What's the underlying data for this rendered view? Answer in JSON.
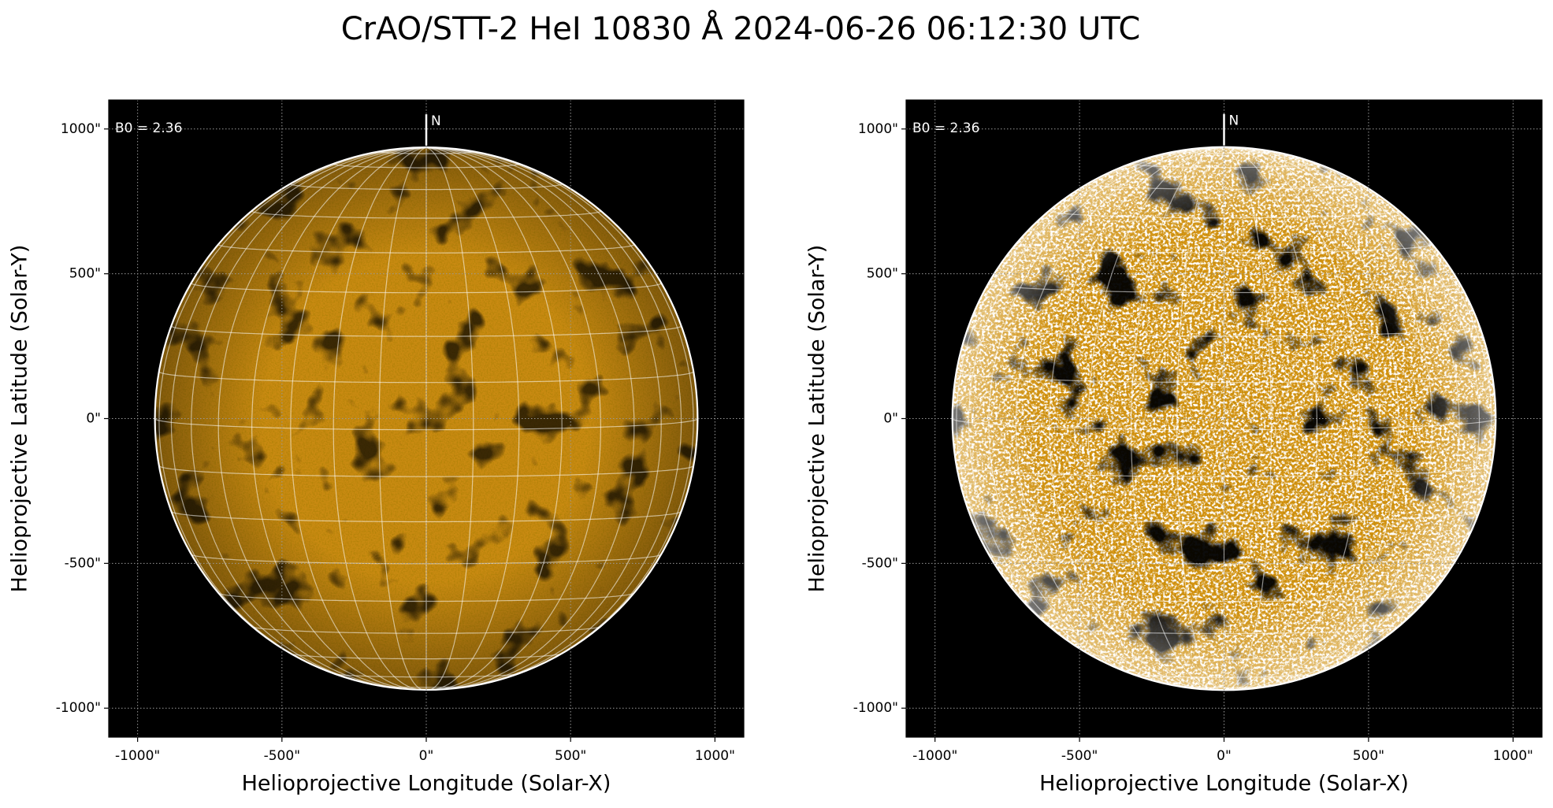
{
  "title": "CrAO/STT-2 HeI 10830 Å 2024-06-26 06:12:30 UTC",
  "chart_data": [
    {
      "type": "solar-image",
      "xlabel": "Helioprojective Longitude (Solar-X)",
      "ylabel": "Helioprojective Latitude (Solar-Y)",
      "annotation": "B0 = 2.36",
      "north_label": "N",
      "xlim": [
        -1100,
        1100
      ],
      "ylim": [
        -1100,
        1100
      ],
      "xticks": [
        {
          "value": -1000,
          "label": "-1000\""
        },
        {
          "value": -500,
          "label": "-500\""
        },
        {
          "value": 0,
          "label": "0\""
        },
        {
          "value": 500,
          "label": "500\""
        },
        {
          "value": 1000,
          "label": "1000\""
        }
      ],
      "yticks": [
        {
          "value": -1000,
          "label": "-1000\""
        },
        {
          "value": -500,
          "label": "-500\""
        },
        {
          "value": 0,
          "label": "0\""
        },
        {
          "value": 500,
          "label": "500\""
        },
        {
          "value": 1000,
          "label": "1000\""
        }
      ],
      "grid": true,
      "disk_radius": 940,
      "b0": 2.36,
      "grid_spacing_deg": 10,
      "disk_color": "#c98a12",
      "style": "normal"
    },
    {
      "type": "solar-image",
      "xlabel": "Helioprojective Longitude (Solar-X)",
      "ylabel": "Helioprojective Latitude (Solar-Y)",
      "annotation": "B0 = 2.36",
      "north_label": "N",
      "xlim": [
        -1100,
        1100
      ],
      "ylim": [
        -1100,
        1100
      ],
      "xticks": [
        {
          "value": -1000,
          "label": "-1000\""
        },
        {
          "value": -500,
          "label": "-500\""
        },
        {
          "value": 0,
          "label": "0\""
        },
        {
          "value": 500,
          "label": "500\""
        },
        {
          "value": 1000,
          "label": "1000\""
        }
      ],
      "yticks": [
        {
          "value": -1000,
          "label": "-1000\""
        },
        {
          "value": -500,
          "label": "-500\""
        },
        {
          "value": 0,
          "label": "0\""
        },
        {
          "value": 500,
          "label": "500\""
        },
        {
          "value": 1000,
          "label": "1000\""
        }
      ],
      "grid": true,
      "disk_radius": 940,
      "b0": 2.36,
      "grid_spacing_deg": 10,
      "disk_color": "#d99512",
      "style": "enhanced"
    }
  ]
}
